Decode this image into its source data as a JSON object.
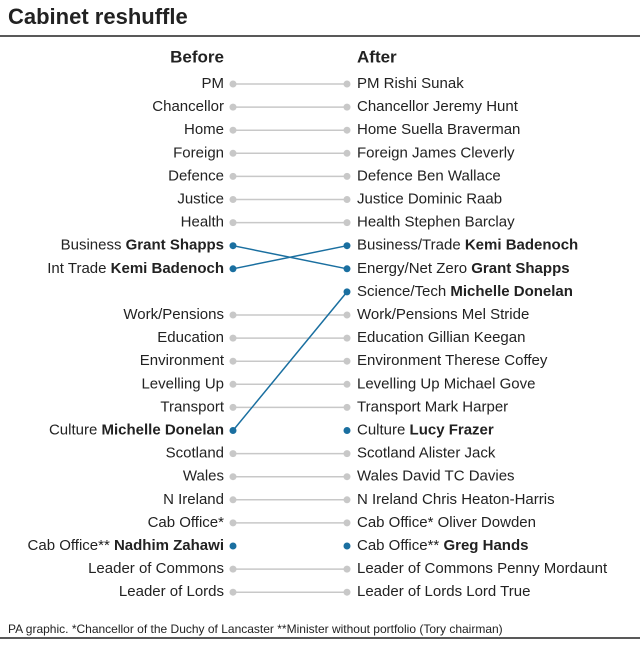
{
  "title": "Cabinet reshuffle",
  "headers": {
    "before": "Before",
    "after": "After"
  },
  "left": [
    {
      "text": "PM"
    },
    {
      "text": "Chancellor"
    },
    {
      "text": "Home"
    },
    {
      "text": "Foreign"
    },
    {
      "text": "Defence"
    },
    {
      "text": "Justice"
    },
    {
      "text": "Health"
    },
    {
      "text": "Business",
      "name": "Grant Shapps",
      "highlight": true
    },
    {
      "text": "Int Trade",
      "name": "Kemi Badenoch",
      "highlight": true
    },
    null,
    {
      "text": "Work/Pensions"
    },
    {
      "text": "Education"
    },
    {
      "text": "Environment"
    },
    {
      "text": "Levelling Up"
    },
    {
      "text": "Transport"
    },
    {
      "text": "Culture",
      "name": "Michelle Donelan",
      "highlight": true
    },
    {
      "text": "Scotland"
    },
    {
      "text": "Wales"
    },
    {
      "text": "N Ireland"
    },
    {
      "text": "Cab Office*"
    },
    {
      "text": "Cab Office**",
      "name": "Nadhim Zahawi",
      "highlight": true
    },
    {
      "text": "Leader of Commons"
    },
    {
      "text": "Leader of Lords"
    }
  ],
  "right": [
    {
      "text": "PM Rishi Sunak"
    },
    {
      "text": "Chancellor Jeremy Hunt"
    },
    {
      "text": "Home Suella Braverman"
    },
    {
      "text": "Foreign James Cleverly"
    },
    {
      "text": "Defence Ben Wallace"
    },
    {
      "text": "Justice Dominic Raab"
    },
    {
      "text": "Health Stephen Barclay"
    },
    {
      "text": "Business/Trade",
      "name": "Kemi Badenoch",
      "highlight": true
    },
    {
      "text": "Energy/Net Zero",
      "name": "Grant Shapps",
      "highlight": true
    },
    {
      "text": "Science/Tech",
      "name": "Michelle Donelan",
      "highlight": true
    },
    {
      "text": "Work/Pensions Mel Stride"
    },
    {
      "text": "Education Gillian Keegan"
    },
    {
      "text": "Environment Therese Coffey"
    },
    {
      "text": "Levelling Up Michael Gove"
    },
    {
      "text": "Transport Mark Harper"
    },
    {
      "text": "Culture",
      "name": "Lucy Frazer",
      "highlight": true
    },
    {
      "text": "Scotland Alister Jack"
    },
    {
      "text": "Wales David TC Davies"
    },
    {
      "text": "N Ireland Chris Heaton-Harris"
    },
    {
      "text": "Cab Office* Oliver Dowden"
    },
    {
      "text": "Cab Office**",
      "name": "Greg Hands",
      "highlight": true
    },
    {
      "text": "Leader of Commons Penny Mordaunt"
    },
    {
      "text": "Leader of Lords Lord True"
    }
  ],
  "links": [
    {
      "from": 7,
      "to": 8
    },
    {
      "from": 8,
      "to": 7
    },
    {
      "from": 15,
      "to": 9
    }
  ],
  "footnote": "PA graphic. *Chancellor of the Duchy of Lancaster **Minister without portfolio (Tory chairman)"
}
